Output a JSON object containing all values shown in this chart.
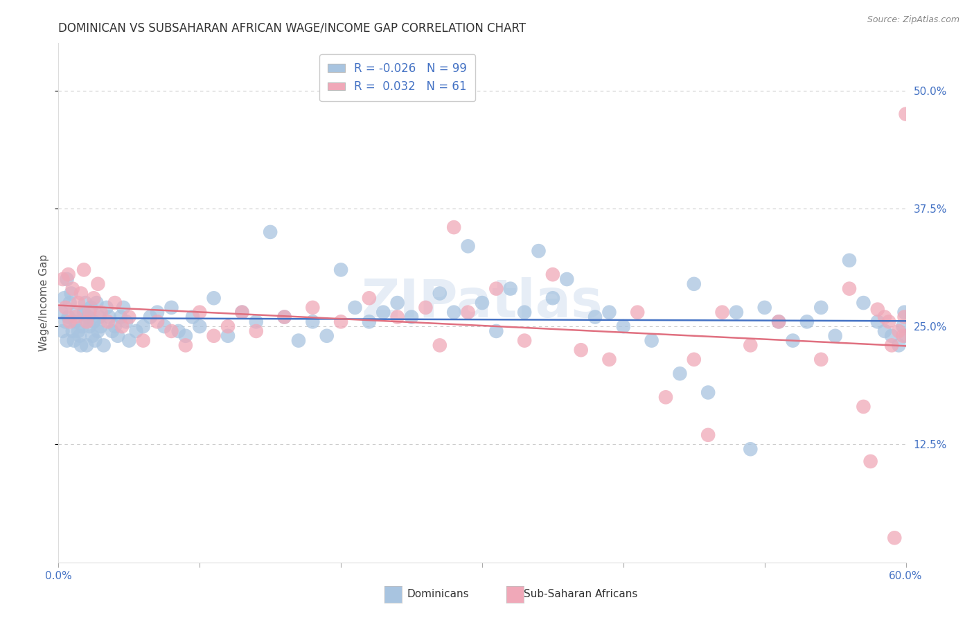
{
  "title": "DOMINICAN VS SUBSAHARAN AFRICAN WAGE/INCOME GAP CORRELATION CHART",
  "source": "Source: ZipAtlas.com",
  "ylabel": "Wage/Income Gap",
  "xlim": [
    0.0,
    0.6
  ],
  "ylim": [
    0.0,
    0.55
  ],
  "xtick_vals": [
    0.0,
    0.1,
    0.2,
    0.3,
    0.4,
    0.5,
    0.6
  ],
  "ytick_labels": [
    "12.5%",
    "25.0%",
    "37.5%",
    "50.0%"
  ],
  "ytick_vals": [
    0.125,
    0.25,
    0.375,
    0.5
  ],
  "legend_blue_label": "Dominicans",
  "legend_pink_label": "Sub-Saharan Africans",
  "R_blue": "-0.026",
  "N_blue": "99",
  "R_pink": "0.032",
  "N_pink": "61",
  "blue_color": "#a8c4e0",
  "pink_color": "#f0a8b8",
  "blue_line_color": "#4472c4",
  "pink_line_color": "#e07080",
  "watermark": "ZIPatlas",
  "blue_x": [
    0.002,
    0.003,
    0.004,
    0.005,
    0.006,
    0.006,
    0.007,
    0.008,
    0.009,
    0.01,
    0.011,
    0.012,
    0.013,
    0.014,
    0.015,
    0.016,
    0.017,
    0.018,
    0.019,
    0.02,
    0.021,
    0.022,
    0.023,
    0.024,
    0.025,
    0.026,
    0.027,
    0.028,
    0.029,
    0.03,
    0.032,
    0.034,
    0.036,
    0.038,
    0.04,
    0.042,
    0.044,
    0.046,
    0.048,
    0.05,
    0.055,
    0.06,
    0.065,
    0.07,
    0.075,
    0.08,
    0.085,
    0.09,
    0.095,
    0.1,
    0.11,
    0.12,
    0.13,
    0.14,
    0.15,
    0.16,
    0.17,
    0.18,
    0.19,
    0.2,
    0.21,
    0.22,
    0.23,
    0.24,
    0.25,
    0.27,
    0.28,
    0.29,
    0.3,
    0.31,
    0.32,
    0.33,
    0.34,
    0.35,
    0.36,
    0.38,
    0.39,
    0.4,
    0.42,
    0.44,
    0.45,
    0.46,
    0.48,
    0.49,
    0.5,
    0.51,
    0.52,
    0.53,
    0.54,
    0.55,
    0.56,
    0.57,
    0.58,
    0.585,
    0.59,
    0.595,
    0.598,
    0.599,
    0.6
  ],
  "blue_y": [
    0.265,
    0.245,
    0.28,
    0.255,
    0.3,
    0.235,
    0.26,
    0.275,
    0.285,
    0.245,
    0.235,
    0.255,
    0.265,
    0.245,
    0.24,
    0.23,
    0.25,
    0.265,
    0.275,
    0.23,
    0.26,
    0.25,
    0.27,
    0.24,
    0.255,
    0.235,
    0.275,
    0.245,
    0.26,
    0.25,
    0.23,
    0.27,
    0.26,
    0.245,
    0.25,
    0.24,
    0.26,
    0.27,
    0.255,
    0.235,
    0.245,
    0.25,
    0.26,
    0.265,
    0.25,
    0.27,
    0.245,
    0.24,
    0.26,
    0.25,
    0.28,
    0.24,
    0.265,
    0.255,
    0.35,
    0.26,
    0.235,
    0.255,
    0.24,
    0.31,
    0.27,
    0.255,
    0.265,
    0.275,
    0.26,
    0.285,
    0.265,
    0.335,
    0.275,
    0.245,
    0.29,
    0.265,
    0.33,
    0.28,
    0.3,
    0.26,
    0.265,
    0.25,
    0.235,
    0.2,
    0.295,
    0.18,
    0.265,
    0.12,
    0.27,
    0.255,
    0.235,
    0.255,
    0.27,
    0.24,
    0.32,
    0.275,
    0.255,
    0.245,
    0.24,
    0.23,
    0.25,
    0.265,
    0.24
  ],
  "pink_x": [
    0.003,
    0.005,
    0.007,
    0.008,
    0.01,
    0.012,
    0.014,
    0.016,
    0.018,
    0.02,
    0.022,
    0.025,
    0.028,
    0.03,
    0.035,
    0.04,
    0.045,
    0.05,
    0.06,
    0.07,
    0.08,
    0.09,
    0.1,
    0.11,
    0.12,
    0.13,
    0.14,
    0.16,
    0.18,
    0.2,
    0.22,
    0.24,
    0.26,
    0.27,
    0.28,
    0.29,
    0.31,
    0.33,
    0.35,
    0.37,
    0.39,
    0.41,
    0.43,
    0.45,
    0.46,
    0.47,
    0.49,
    0.51,
    0.54,
    0.56,
    0.57,
    0.575,
    0.58,
    0.585,
    0.588,
    0.59,
    0.592,
    0.595,
    0.598,
    0.599,
    0.6
  ],
  "pink_y": [
    0.3,
    0.27,
    0.305,
    0.255,
    0.29,
    0.26,
    0.275,
    0.285,
    0.31,
    0.255,
    0.265,
    0.28,
    0.295,
    0.265,
    0.255,
    0.275,
    0.25,
    0.26,
    0.235,
    0.255,
    0.245,
    0.23,
    0.265,
    0.24,
    0.25,
    0.265,
    0.245,
    0.26,
    0.27,
    0.255,
    0.28,
    0.26,
    0.27,
    0.23,
    0.355,
    0.265,
    0.29,
    0.235,
    0.305,
    0.225,
    0.215,
    0.265,
    0.175,
    0.215,
    0.135,
    0.265,
    0.23,
    0.255,
    0.215,
    0.29,
    0.165,
    0.107,
    0.268,
    0.26,
    0.255,
    0.23,
    0.026,
    0.245,
    0.24,
    0.26,
    0.475
  ]
}
